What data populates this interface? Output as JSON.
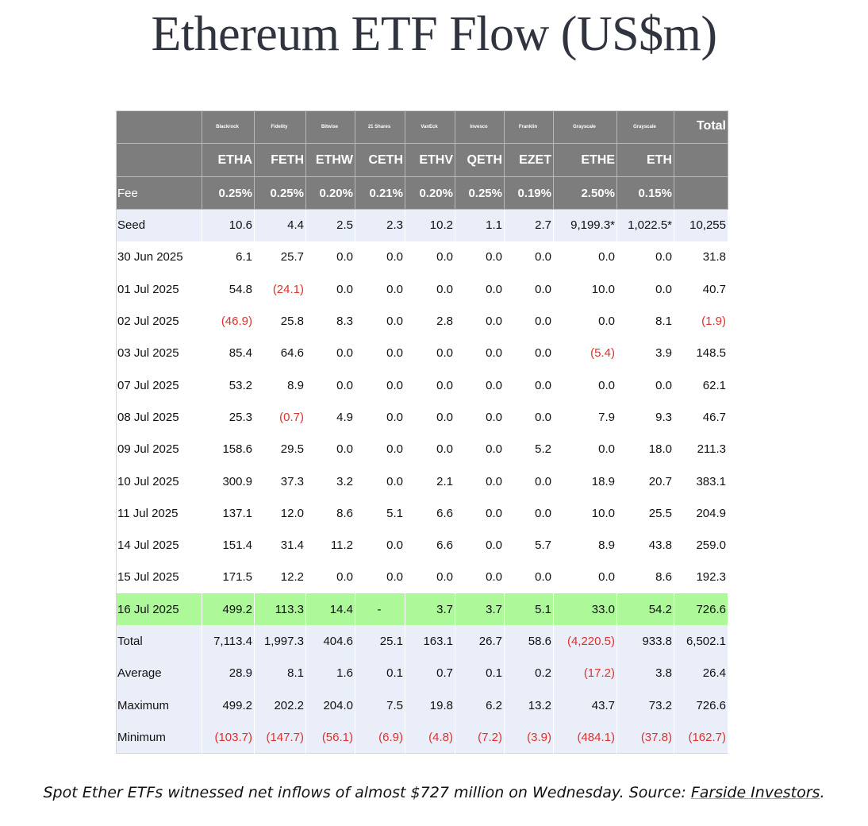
{
  "title": "Ethereum ETF Flow (US$m)",
  "issuers": [
    "Blackrock",
    "Fidelity",
    "Bitwise",
    "21 Shares",
    "VanEck",
    "Invesco",
    "Franklin",
    "Grayscale",
    "Grayscale"
  ],
  "total_header": "Total",
  "tickers": [
    "ETHA",
    "FETH",
    "ETHW",
    "CETH",
    "ETHV",
    "QETH",
    "EZET",
    "ETHE",
    "ETH"
  ],
  "fee_row": {
    "label": "Fee",
    "values": [
      "0.25%",
      "0.25%",
      "0.20%",
      "0.21%",
      "0.20%",
      "0.25%",
      "0.19%",
      "2.50%",
      "0.15%"
    ]
  },
  "rows": [
    {
      "label": "Seed",
      "style": "blue",
      "values": [
        "10.6",
        "4.4",
        "2.5",
        "2.3",
        "10.2",
        "1.1",
        "2.7",
        "9,199.3*",
        "1,022.5*",
        "10,255"
      ]
    },
    {
      "label": "30 Jun 2025",
      "style": "white",
      "values": [
        "6.1",
        "25.7",
        "0.0",
        "0.0",
        "0.0",
        "0.0",
        "0.0",
        "0.0",
        "0.0",
        "31.8"
      ]
    },
    {
      "label": "01 Jul 2025",
      "style": "white",
      "values": [
        "54.8",
        "(24.1)",
        "0.0",
        "0.0",
        "0.0",
        "0.0",
        "0.0",
        "10.0",
        "0.0",
        "40.7"
      ]
    },
    {
      "label": "02 Jul 2025",
      "style": "white",
      "values": [
        "(46.9)",
        "25.8",
        "8.3",
        "0.0",
        "2.8",
        "0.0",
        "0.0",
        "0.0",
        "8.1",
        "(1.9)"
      ]
    },
    {
      "label": "03 Jul 2025",
      "style": "white",
      "values": [
        "85.4",
        "64.6",
        "0.0",
        "0.0",
        "0.0",
        "0.0",
        "0.0",
        "(5.4)",
        "3.9",
        "148.5"
      ]
    },
    {
      "label": "07 Jul 2025",
      "style": "white",
      "values": [
        "53.2",
        "8.9",
        "0.0",
        "0.0",
        "0.0",
        "0.0",
        "0.0",
        "0.0",
        "0.0",
        "62.1"
      ]
    },
    {
      "label": "08 Jul 2025",
      "style": "white",
      "values": [
        "25.3",
        "(0.7)",
        "4.9",
        "0.0",
        "0.0",
        "0.0",
        "0.0",
        "7.9",
        "9.3",
        "46.7"
      ]
    },
    {
      "label": "09 Jul 2025",
      "style": "white",
      "values": [
        "158.6",
        "29.5",
        "0.0",
        "0.0",
        "0.0",
        "0.0",
        "5.2",
        "0.0",
        "18.0",
        "211.3"
      ]
    },
    {
      "label": "10 Jul 2025",
      "style": "white",
      "values": [
        "300.9",
        "37.3",
        "3.2",
        "0.0",
        "2.1",
        "0.0",
        "0.0",
        "18.9",
        "20.7",
        "383.1"
      ]
    },
    {
      "label": "11 Jul 2025",
      "style": "white",
      "values": [
        "137.1",
        "12.0",
        "8.6",
        "5.1",
        "6.6",
        "0.0",
        "0.0",
        "10.0",
        "25.5",
        "204.9"
      ]
    },
    {
      "label": "14 Jul 2025",
      "style": "white",
      "values": [
        "151.4",
        "31.4",
        "11.2",
        "0.0",
        "6.6",
        "0.0",
        "5.7",
        "8.9",
        "43.8",
        "259.0"
      ]
    },
    {
      "label": "15 Jul 2025",
      "style": "white",
      "values": [
        "171.5",
        "12.2",
        "0.0",
        "0.0",
        "0.0",
        "0.0",
        "0.0",
        "0.0",
        "8.6",
        "192.3"
      ]
    },
    {
      "label": "16 Jul 2025",
      "style": "green",
      "values": [
        "499.2",
        "113.3",
        "14.4",
        "-",
        "3.7",
        "3.7",
        "5.1",
        "33.0",
        "54.2",
        "726.6"
      ]
    },
    {
      "label": "Total",
      "style": "blue",
      "values": [
        "7,113.4",
        "1,997.3",
        "404.6",
        "25.1",
        "163.1",
        "26.7",
        "58.6",
        "(4,220.5)",
        "933.8",
        "6,502.1"
      ]
    },
    {
      "label": "Average",
      "style": "blue",
      "values": [
        "28.9",
        "8.1",
        "1.6",
        "0.1",
        "0.7",
        "0.1",
        "0.2",
        "(17.2)",
        "3.8",
        "26.4"
      ]
    },
    {
      "label": "Maximum",
      "style": "blue",
      "values": [
        "499.2",
        "202.2",
        "204.0",
        "7.5",
        "19.8",
        "6.2",
        "13.2",
        "43.7",
        "73.2",
        "726.6"
      ]
    },
    {
      "label": "Minimum",
      "style": "blue",
      "values": [
        "(103.7)",
        "(147.7)",
        "(56.1)",
        "(6.9)",
        "(4.8)",
        "(7.2)",
        "(3.9)",
        "(484.1)",
        "(37.8)",
        "(162.7)"
      ]
    }
  ],
  "caption": {
    "text": "Spot Ether ETFs witnessed net inflows of almost $727 million on Wednesday. Source: ",
    "link_text": "Farside Investors",
    "tail": "."
  },
  "colors": {
    "header_bg": "#7d7d7d",
    "blue_row": "#e9eef8",
    "highlight_row": "#adf899",
    "negative": "#e0312c"
  }
}
